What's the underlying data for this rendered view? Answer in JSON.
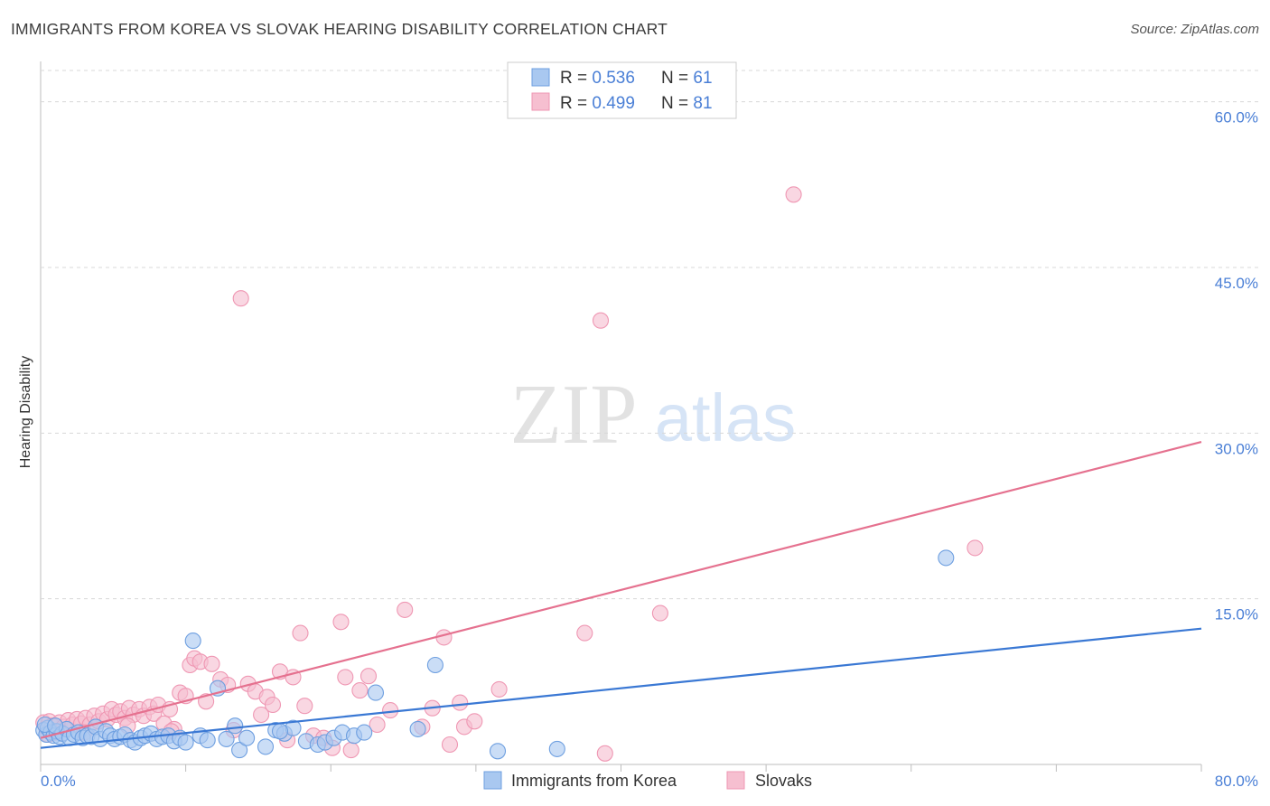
{
  "header": {
    "title": "IMMIGRANTS FROM KOREA VS SLOVAK HEARING DISABILITY CORRELATION CHART",
    "source": "Source: ZipAtlas.com"
  },
  "watermark": {
    "zip": "ZIP",
    "atlas": "atlas"
  },
  "colors": {
    "korea_fill": "#a9c8f0",
    "korea_stroke": "#6e9fe0",
    "korea_line": "#3a78d4",
    "slovak_fill": "#f6bfd0",
    "slovak_stroke": "#ef97b3",
    "slovak_line": "#e5718f",
    "tick_text": "#4a7fd6",
    "grid": "#d8d8d8"
  },
  "legend_top": {
    "rows": [
      {
        "r_label": "R = ",
        "r_value": "0.536",
        "n_label": "N = ",
        "n_value": "61"
      },
      {
        "r_label": "R = ",
        "r_value": "0.499",
        "n_label": "N = ",
        "n_value": "81"
      }
    ]
  },
  "chart_data": {
    "type": "scatter",
    "title": "IMMIGRANTS FROM KOREA VS SLOVAK HEARING DISABILITY CORRELATION CHART",
    "xlabel": "",
    "ylabel": "Hearing Disability",
    "xlim": [
      0,
      80
    ],
    "ylim": [
      0,
      63
    ],
    "x_tick_labels": [
      "0.0%",
      "80.0%"
    ],
    "y_ticks": [
      15,
      30,
      45,
      60
    ],
    "y_tick_labels": [
      "15.0%",
      "30.0%",
      "45.0%",
      "60.0%"
    ],
    "grid": true,
    "legend_bottom": [
      "Immigrants from Korea",
      "Slovaks"
    ],
    "series": [
      {
        "name": "Immigrants from Korea",
        "r": 0.536,
        "n": 61,
        "trend": {
          "x0": 0,
          "y0": 1.5,
          "x1": 80,
          "y1": 12.3
        },
        "points": [
          [
            0.2,
            3.1
          ],
          [
            0.4,
            2.7
          ],
          [
            0.5,
            3.3
          ],
          [
            0.7,
            2.9
          ],
          [
            0.9,
            2.6
          ],
          [
            1.1,
            3.0
          ],
          [
            1.3,
            2.5
          ],
          [
            1.5,
            2.8
          ],
          [
            1.8,
            3.2
          ],
          [
            2.0,
            2.4
          ],
          [
            2.3,
            2.7
          ],
          [
            2.6,
            2.9
          ],
          [
            2.9,
            2.4
          ],
          [
            3.2,
            2.6
          ],
          [
            3.5,
            2.5
          ],
          [
            3.8,
            3.4
          ],
          [
            4.1,
            2.3
          ],
          [
            4.5,
            3.0
          ],
          [
            4.8,
            2.6
          ],
          [
            5.1,
            2.3
          ],
          [
            5.5,
            2.5
          ],
          [
            5.8,
            2.7
          ],
          [
            6.2,
            2.2
          ],
          [
            6.5,
            2.0
          ],
          [
            6.9,
            2.4
          ],
          [
            7.2,
            2.6
          ],
          [
            7.6,
            2.8
          ],
          [
            8.0,
            2.3
          ],
          [
            8.4,
            2.5
          ],
          [
            8.8,
            2.6
          ],
          [
            9.2,
            2.1
          ],
          [
            9.6,
            2.4
          ],
          [
            10.0,
            2.0
          ],
          [
            10.5,
            11.2
          ],
          [
            11.0,
            2.6
          ],
          [
            11.5,
            2.2
          ],
          [
            12.2,
            6.9
          ],
          [
            12.8,
            2.3
          ],
          [
            13.4,
            3.5
          ],
          [
            13.7,
            1.3
          ],
          [
            14.2,
            2.4
          ],
          [
            15.5,
            1.6
          ],
          [
            16.2,
            3.1
          ],
          [
            16.8,
            2.8
          ],
          [
            17.4,
            3.3
          ],
          [
            18.3,
            2.1
          ],
          [
            19.1,
            1.8
          ],
          [
            19.6,
            2.0
          ],
          [
            20.2,
            2.4
          ],
          [
            20.8,
            2.9
          ],
          [
            21.6,
            2.6
          ],
          [
            22.3,
            2.9
          ],
          [
            23.1,
            6.5
          ],
          [
            26.0,
            3.2
          ],
          [
            27.2,
            9.0
          ],
          [
            31.5,
            1.2
          ],
          [
            35.6,
            1.4
          ],
          [
            62.4,
            18.7
          ],
          [
            0.3,
            3.6
          ],
          [
            1.0,
            3.5
          ],
          [
            16.5,
            3.0
          ]
        ]
      },
      {
        "name": "Slovaks",
        "r": 0.499,
        "n": 81,
        "trend": {
          "x0": 0,
          "y0": 2.4,
          "x1": 80,
          "y1": 29.2
        },
        "points": [
          [
            0.2,
            3.8
          ],
          [
            0.4,
            3.3
          ],
          [
            0.6,
            3.9
          ],
          [
            0.8,
            3.5
          ],
          [
            1.0,
            2.9
          ],
          [
            1.3,
            3.8
          ],
          [
            1.6,
            3.4
          ],
          [
            1.9,
            4.0
          ],
          [
            2.2,
            3.6
          ],
          [
            2.5,
            4.1
          ],
          [
            2.8,
            3.7
          ],
          [
            3.1,
            4.2
          ],
          [
            3.4,
            3.6
          ],
          [
            3.7,
            4.4
          ],
          [
            4.0,
            3.9
          ],
          [
            4.3,
            4.6
          ],
          [
            4.6,
            4.1
          ],
          [
            4.9,
            5.0
          ],
          [
            5.2,
            4.5
          ],
          [
            5.5,
            4.8
          ],
          [
            5.8,
            4.2
          ],
          [
            6.1,
            5.1
          ],
          [
            6.4,
            4.5
          ],
          [
            6.8,
            5.0
          ],
          [
            7.1,
            4.4
          ],
          [
            7.5,
            5.2
          ],
          [
            7.8,
            4.6
          ],
          [
            8.1,
            5.4
          ],
          [
            8.5,
            3.7
          ],
          [
            8.9,
            5.0
          ],
          [
            9.2,
            3.2
          ],
          [
            9.6,
            6.5
          ],
          [
            10.0,
            6.2
          ],
          [
            10.3,
            9.0
          ],
          [
            10.6,
            9.6
          ],
          [
            11.0,
            9.3
          ],
          [
            11.4,
            5.7
          ],
          [
            11.8,
            9.1
          ],
          [
            12.4,
            7.7
          ],
          [
            12.9,
            7.2
          ],
          [
            13.3,
            3.1
          ],
          [
            13.8,
            42.2
          ],
          [
            14.3,
            7.3
          ],
          [
            14.8,
            6.6
          ],
          [
            15.2,
            4.5
          ],
          [
            15.6,
            6.1
          ],
          [
            16.0,
            5.4
          ],
          [
            16.5,
            8.4
          ],
          [
            17.0,
            2.2
          ],
          [
            17.4,
            7.9
          ],
          [
            17.9,
            11.9
          ],
          [
            18.2,
            5.3
          ],
          [
            18.8,
            2.6
          ],
          [
            19.5,
            2.4
          ],
          [
            20.1,
            1.5
          ],
          [
            20.7,
            12.9
          ],
          [
            21.0,
            7.9
          ],
          [
            21.4,
            1.3
          ],
          [
            22.0,
            6.7
          ],
          [
            22.6,
            8.0
          ],
          [
            23.2,
            3.6
          ],
          [
            24.1,
            4.9
          ],
          [
            25.1,
            14.0
          ],
          [
            26.3,
            3.4
          ],
          [
            27.0,
            5.1
          ],
          [
            27.8,
            11.5
          ],
          [
            28.2,
            1.8
          ],
          [
            28.9,
            5.6
          ],
          [
            29.2,
            3.4
          ],
          [
            29.9,
            3.9
          ],
          [
            31.6,
            6.8
          ],
          [
            37.5,
            11.9
          ],
          [
            38.6,
            40.2
          ],
          [
            38.9,
            1.0
          ],
          [
            42.7,
            13.7
          ],
          [
            51.9,
            51.6
          ],
          [
            64.4,
            19.6
          ],
          [
            0.5,
            2.7
          ],
          [
            3.0,
            2.9
          ],
          [
            6.0,
            3.5
          ],
          [
            9.0,
            3.0
          ]
        ]
      }
    ]
  }
}
